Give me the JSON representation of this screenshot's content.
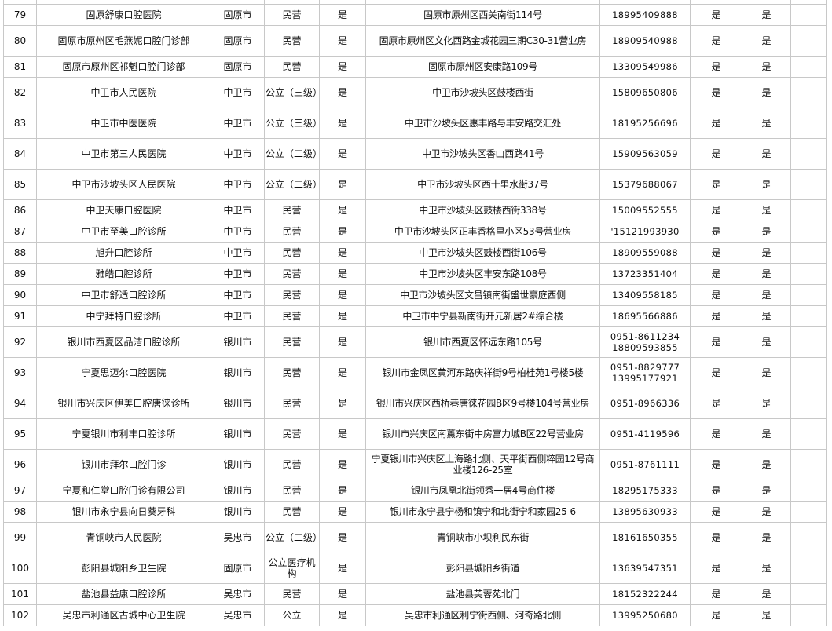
{
  "table": {
    "rows": [
      {
        "no": "79",
        "name": "固原舒康口腔医院",
        "city": "固原市",
        "type": "民营",
        "flag1": "是",
        "address": "固原市原州区西关南街114号",
        "phone": "18995409888",
        "flag2": "是",
        "flag3": "是"
      },
      {
        "no": "80",
        "name": "固原市原州区毛燕妮口腔门诊部",
        "city": "固原市",
        "type": "民营",
        "flag1": "是",
        "address": "固原市原州区文化西路金城花园三期C30-31营业房",
        "phone": "18909540988",
        "flag2": "是",
        "flag3": "是"
      },
      {
        "no": "81",
        "name": "固原市原州区祁魁口腔门诊部",
        "city": "固原市",
        "type": "民营",
        "flag1": "是",
        "address": "固原市原州区安康路109号",
        "phone": "13309549986",
        "flag2": "是",
        "flag3": "是"
      },
      {
        "no": "82",
        "name": "中卫市人民医院",
        "city": "中卫市",
        "type": "公立（三级）",
        "flag1": "是",
        "address": "中卫市沙坡头区鼓楼西街",
        "phone": "15809650806",
        "flag2": "是",
        "flag3": "是"
      },
      {
        "no": "83",
        "name": "中卫市中医医院",
        "city": "中卫市",
        "type": "公立（三级）",
        "flag1": "是",
        "address": "中卫市沙坡头区惠丰路与丰安路交汇处",
        "phone": "18195256696",
        "flag2": "是",
        "flag3": "是"
      },
      {
        "no": "84",
        "name": "中卫市第三人民医院",
        "city": "中卫市",
        "type": "公立（二级）",
        "flag1": "是",
        "address": "中卫市沙坡头区香山西路41号",
        "phone": "15909563059",
        "flag2": "是",
        "flag3": "是"
      },
      {
        "no": "85",
        "name": "中卫市沙坡头区人民医院",
        "city": "中卫市",
        "type": "公立（二级）",
        "flag1": "是",
        "address": "中卫市沙坡头区西十里水街37号",
        "phone": "15379688067",
        "flag2": "是",
        "flag3": "是"
      },
      {
        "no": "86",
        "name": "中卫天康口腔医院",
        "city": "中卫市",
        "type": "民营",
        "flag1": "是",
        "address": "中卫市沙坡头区鼓楼西街338号",
        "phone": "15009552555",
        "flag2": "是",
        "flag3": "是"
      },
      {
        "no": "87",
        "name": "中卫市至美口腔诊所",
        "city": "中卫市",
        "type": "民营",
        "flag1": "是",
        "address": "中卫市沙坡头区正丰香格里小区53号营业房",
        "phone": "'15121993930",
        "flag2": "是",
        "flag3": "是"
      },
      {
        "no": "88",
        "name": "旭升口腔诊所",
        "city": "中卫市",
        "type": "民营",
        "flag1": "是",
        "address": "中卫市沙坡头区鼓楼西街106号",
        "phone": "18909559088",
        "flag2": "是",
        "flag3": "是"
      },
      {
        "no": "89",
        "name": "雅皓口腔诊所",
        "city": "中卫市",
        "type": "民营",
        "flag1": "是",
        "address": "中卫市沙坡头区丰安东路108号",
        "phone": "13723351404",
        "flag2": "是",
        "flag3": "是"
      },
      {
        "no": "90",
        "name": "中卫市舒适口腔诊所",
        "city": "中卫市",
        "type": "民营",
        "flag1": "是",
        "address": "中卫市沙坡头区文昌镇南街盛世豪庭西侧",
        "phone": "13409558185",
        "flag2": "是",
        "flag3": "是"
      },
      {
        "no": "91",
        "name": "中宁拜特口腔诊所",
        "city": "中卫市",
        "type": "民营",
        "flag1": "是",
        "address": "中卫市中宁县新南街开元新居2#综合楼",
        "phone": "18695566886",
        "flag2": "是",
        "flag3": "是"
      },
      {
        "no": "92",
        "name": "银川市西夏区品洁口腔诊所",
        "city": "银川市",
        "type": "民营",
        "flag1": "是",
        "address": "银川市西夏区怀远东路105号",
        "phone": "0951-8611234 18809593855",
        "flag2": "是",
        "flag3": "是"
      },
      {
        "no": "93",
        "name": "宁夏思迈尔口腔医院",
        "city": "银川市",
        "type": "民营",
        "flag1": "是",
        "address": "银川市金凤区黄河东路庆祥街9号柏桂苑1号楼5楼",
        "phone": "0951-8829777 13995177921",
        "flag2": "是",
        "flag3": "是"
      },
      {
        "no": "94",
        "name": "银川市兴庆区伊美口腔唐徕诊所",
        "city": "银川市",
        "type": "民营",
        "flag1": "是",
        "address": "银川市兴庆区西桥巷唐徕花园B区9号楼104号营业房",
        "phone": "0951-8966336",
        "flag2": "是",
        "flag3": "是"
      },
      {
        "no": "95",
        "name": "宁夏银川市利丰口腔诊所",
        "city": "银川市",
        "type": "民营",
        "flag1": "是",
        "address": "银川市兴庆区南薰东街中房富力城B区22号营业房",
        "phone": "0951-4119596",
        "flag2": "是",
        "flag3": "是"
      },
      {
        "no": "96",
        "name": "银川市拜尔口腔门诊",
        "city": "银川市",
        "type": "民营",
        "flag1": "是",
        "address": "宁夏银川市兴庆区上海路北侧、天平街西侧粹园12号商业楼126-25室",
        "phone": "0951-8761111",
        "flag2": "是",
        "flag3": "是"
      },
      {
        "no": "97",
        "name": "宁夏和仁堂口腔门诊有限公司",
        "city": "银川市",
        "type": "民营",
        "flag1": "是",
        "address": "银川市凤凰北街领秀一居4号商住楼",
        "phone": "18295175333",
        "flag2": "是",
        "flag3": "是"
      },
      {
        "no": "98",
        "name": "银川市永宁县向日葵牙科",
        "city": "银川市",
        "type": "民营",
        "flag1": "是",
        "address": "银川市永宁县宁杨和镇宁和北街宁和家园25-6",
        "phone": "13895630933",
        "flag2": "是",
        "flag3": "是"
      },
      {
        "no": "99",
        "name": "青铜峡市人民医院",
        "city": "吴忠市",
        "type": "公立（二级）",
        "flag1": "是",
        "address": "青铜峡市小坝利民东街",
        "phone": "18161650355",
        "flag2": "是",
        "flag3": "是"
      },
      {
        "no": "100",
        "name": "彭阳县城阳乡卫生院",
        "city": "固原市",
        "type": "公立医疗机构",
        "flag1": "是",
        "address": "彭阳县城阳乡街道",
        "phone": "13639547351",
        "flag2": "是",
        "flag3": "是"
      },
      {
        "no": "101",
        "name": "盐池县益康口腔诊所",
        "city": "吴忠市",
        "type": "民营",
        "flag1": "是",
        "address": "盐池县芙蓉苑北门",
        "phone": "18152322244",
        "flag2": "是",
        "flag3": "是"
      },
      {
        "no": "102",
        "name": "吴忠市利通区古城中心卫生院",
        "city": "吴忠市",
        "type": "公立",
        "flag1": "是",
        "address": "吴忠市利通区利宁街西侧、河奇路北侧",
        "phone": "13995250680",
        "flag2": "是",
        "flag3": "是"
      }
    ]
  }
}
